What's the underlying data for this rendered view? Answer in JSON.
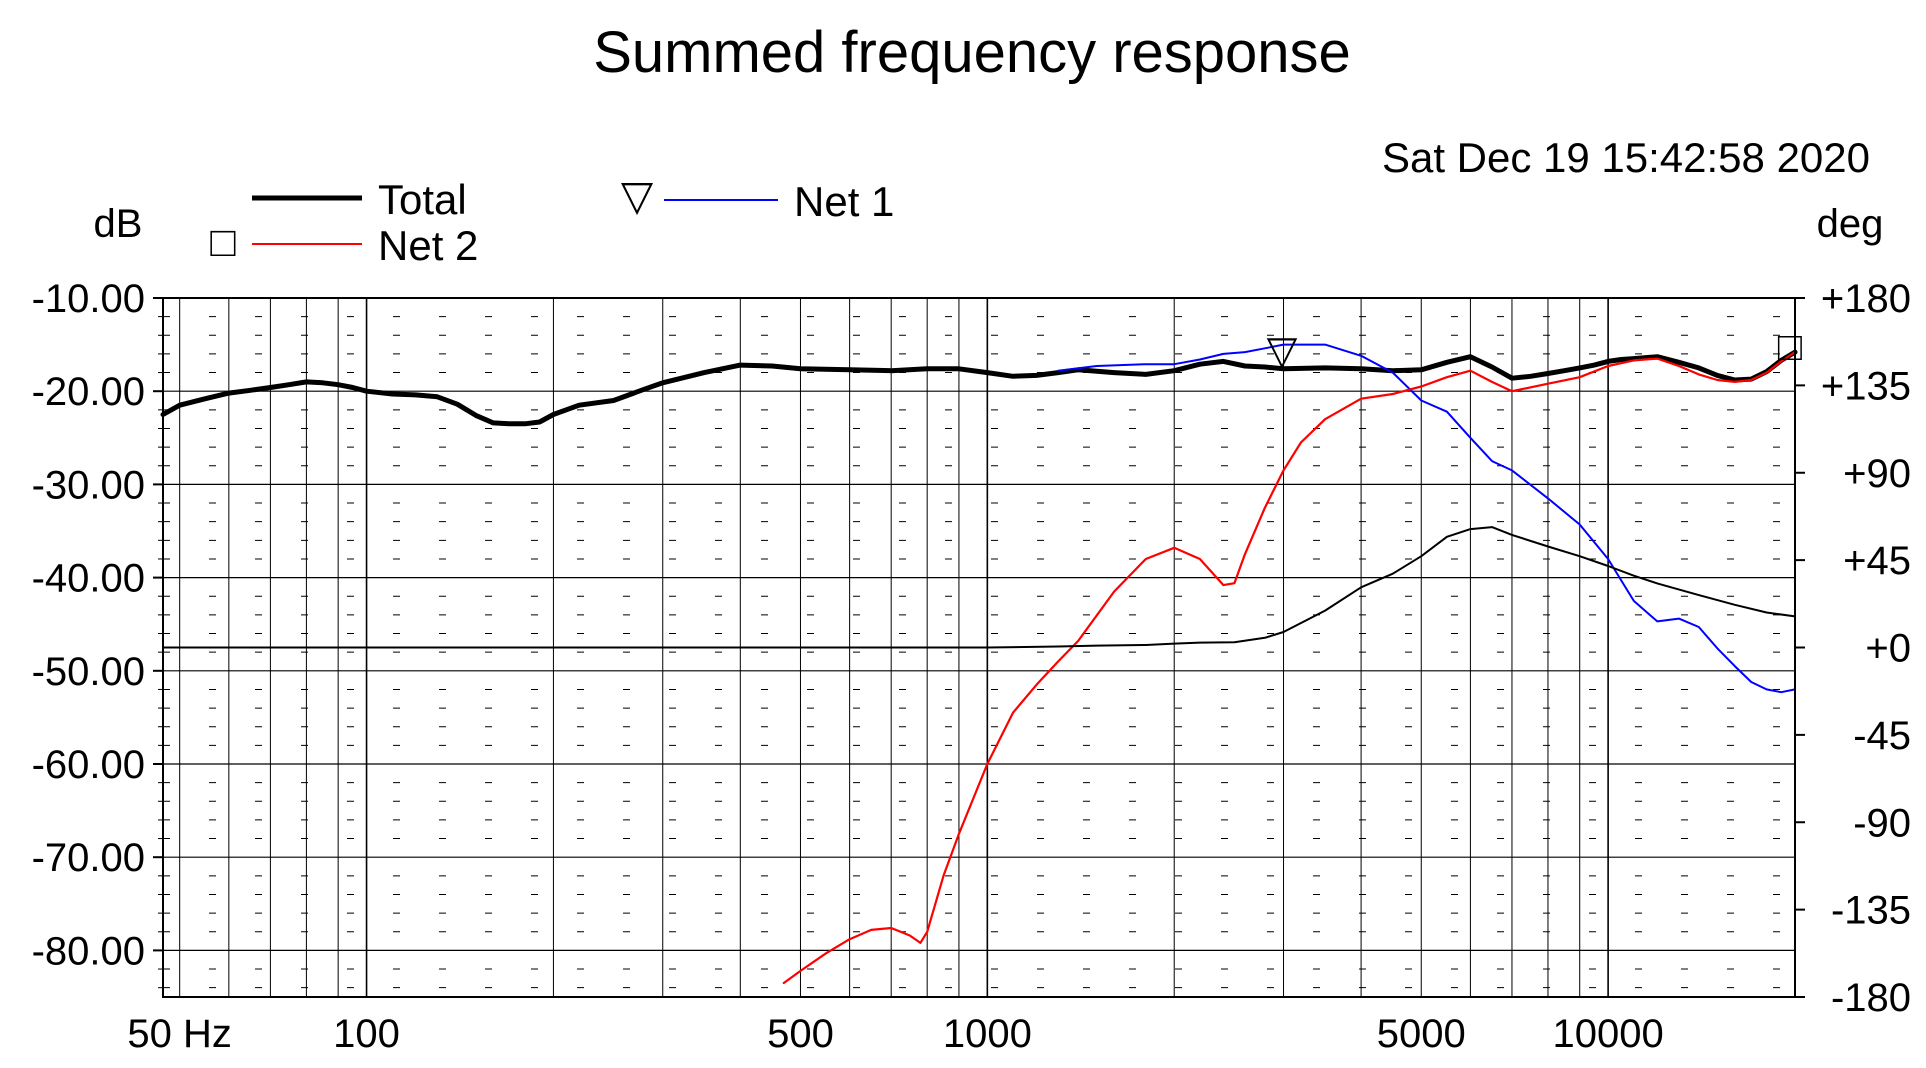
{
  "chart_data": {
    "type": "line",
    "title": "Summed frequency response",
    "timestamp": "Sat Dec 19 15:42:58 2020",
    "left_axis_unit": "dB",
    "right_axis_unit": "deg",
    "x_scale": "log",
    "x_range_hz": [
      47,
      20000
    ],
    "y_left_range_db": [
      -85,
      -10
    ],
    "y_right_range_deg": [
      -180,
      180
    ],
    "x_ticks": [
      {
        "value": 50,
        "label": "50 Hz"
      },
      {
        "value": 100,
        "label": "100"
      },
      {
        "value": 500,
        "label": "500"
      },
      {
        "value": 1000,
        "label": "1000"
      },
      {
        "value": 5000,
        "label": "5000"
      },
      {
        "value": 10000,
        "label": "10000"
      }
    ],
    "y_left_ticks": [
      {
        "value": -10,
        "label": "-10.00"
      },
      {
        "value": -20,
        "label": "-20.00"
      },
      {
        "value": -30,
        "label": "-30.00"
      },
      {
        "value": -40,
        "label": "-40.00"
      },
      {
        "value": -50,
        "label": "-50.00"
      },
      {
        "value": -60,
        "label": "-60.00"
      },
      {
        "value": -70,
        "label": "-70.00"
      },
      {
        "value": -80,
        "label": "-80.00"
      }
    ],
    "y_right_ticks": [
      {
        "value": 180,
        "label": "+180"
      },
      {
        "value": 135,
        "label": "+135"
      },
      {
        "value": 90,
        "label": "+90"
      },
      {
        "value": 45,
        "label": "+45"
      },
      {
        "value": 0,
        "label": "+0"
      },
      {
        "value": -45,
        "label": "-45"
      },
      {
        "value": -90,
        "label": "-90"
      },
      {
        "value": -135,
        "label": "-135"
      },
      {
        "value": -180,
        "label": "-180"
      }
    ],
    "legend": [
      {
        "name": "Total",
        "color": "#000000",
        "marker": ""
      },
      {
        "name": "Net 2",
        "color": "#ff0000",
        "marker": "□"
      },
      {
        "name": "Net 1",
        "color": "#0000ff",
        "marker": "▽"
      }
    ],
    "series": [
      {
        "name": "Total",
        "axis": "left",
        "color": "#000000",
        "points": [
          [
            47,
            -22.5
          ],
          [
            50,
            -21.5
          ],
          [
            55,
            -20.8
          ],
          [
            60,
            -20.2
          ],
          [
            65,
            -19.9
          ],
          [
            70,
            -19.6
          ],
          [
            75,
            -19.3
          ],
          [
            80,
            -19.0
          ],
          [
            85,
            -19.1
          ],
          [
            90,
            -19.3
          ],
          [
            95,
            -19.6
          ],
          [
            100,
            -20.0
          ],
          [
            110,
            -20.3
          ],
          [
            120,
            -20.4
          ],
          [
            130,
            -20.6
          ],
          [
            140,
            -21.4
          ],
          [
            150,
            -22.6
          ],
          [
            160,
            -23.4
          ],
          [
            170,
            -23.5
          ],
          [
            180,
            -23.5
          ],
          [
            190,
            -23.3
          ],
          [
            200,
            -22.5
          ],
          [
            220,
            -21.5
          ],
          [
            250,
            -21.0
          ],
          [
            280,
            -19.8
          ],
          [
            300,
            -19.1
          ],
          [
            350,
            -18.0
          ],
          [
            400,
            -17.2
          ],
          [
            450,
            -17.3
          ],
          [
            500,
            -17.6
          ],
          [
            600,
            -17.7
          ],
          [
            700,
            -17.8
          ],
          [
            800,
            -17.6
          ],
          [
            900,
            -17.6
          ],
          [
            1000,
            -18.0
          ],
          [
            1100,
            -18.4
          ],
          [
            1200,
            -18.3
          ],
          [
            1300,
            -18.0
          ],
          [
            1400,
            -17.7
          ],
          [
            1600,
            -18.0
          ],
          [
            1800,
            -18.2
          ],
          [
            2000,
            -17.8
          ],
          [
            2200,
            -17.1
          ],
          [
            2400,
            -16.8
          ],
          [
            2600,
            -17.3
          ],
          [
            2800,
            -17.4
          ],
          [
            3000,
            -17.6
          ],
          [
            3500,
            -17.5
          ],
          [
            4000,
            -17.6
          ],
          [
            4500,
            -17.8
          ],
          [
            5000,
            -17.7
          ],
          [
            5500,
            -16.9
          ],
          [
            6000,
            -16.3
          ],
          [
            6500,
            -17.4
          ],
          [
            7000,
            -18.6
          ],
          [
            7500,
            -18.4
          ],
          [
            8000,
            -18.1
          ],
          [
            8500,
            -17.8
          ],
          [
            9000,
            -17.5
          ],
          [
            9500,
            -17.2
          ],
          [
            10000,
            -16.8
          ],
          [
            10500,
            -16.6
          ],
          [
            11000,
            -16.5
          ],
          [
            12000,
            -16.3
          ],
          [
            13000,
            -16.9
          ],
          [
            14000,
            -17.5
          ],
          [
            15000,
            -18.3
          ],
          [
            16000,
            -18.8
          ],
          [
            17000,
            -18.7
          ],
          [
            18000,
            -17.9
          ],
          [
            19000,
            -16.7
          ],
          [
            20000,
            -15.8
          ]
        ]
      },
      {
        "name": "Net 1",
        "axis": "left",
        "color": "#0000ff",
        "points": [
          [
            1300,
            -17.8
          ],
          [
            1500,
            -17.3
          ],
          [
            1800,
            -17.1
          ],
          [
            2000,
            -17.1
          ],
          [
            2200,
            -16.6
          ],
          [
            2400,
            -16.0
          ],
          [
            2600,
            -15.8
          ],
          [
            2800,
            -15.4
          ],
          [
            3000,
            -15.0
          ],
          [
            3500,
            -15.0
          ],
          [
            4000,
            -16.2
          ],
          [
            4500,
            -18.0
          ],
          [
            5000,
            -21.0
          ],
          [
            5500,
            -22.2
          ],
          [
            6000,
            -25.0
          ],
          [
            6500,
            -27.5
          ],
          [
            7000,
            -28.5
          ],
          [
            8000,
            -31.5
          ],
          [
            9000,
            -34.3
          ],
          [
            10000,
            -38.0
          ],
          [
            11000,
            -42.5
          ],
          [
            12000,
            -44.7
          ],
          [
            13000,
            -44.4
          ],
          [
            14000,
            -45.3
          ],
          [
            15000,
            -47.6
          ],
          [
            16000,
            -49.5
          ],
          [
            17000,
            -51.2
          ],
          [
            18000,
            -52.0
          ],
          [
            19000,
            -52.3
          ],
          [
            20000,
            -52.0
          ]
        ]
      },
      {
        "name": "Net 2",
        "axis": "left",
        "color": "#ff0000",
        "points": [
          [
            470,
            -83.5
          ],
          [
            500,
            -82.2
          ],
          [
            550,
            -80.3
          ],
          [
            600,
            -78.8
          ],
          [
            650,
            -77.8
          ],
          [
            700,
            -77.6
          ],
          [
            750,
            -78.4
          ],
          [
            780,
            -79.2
          ],
          [
            800,
            -78.0
          ],
          [
            850,
            -72.0
          ],
          [
            900,
            -67.5
          ],
          [
            1000,
            -60.0
          ],
          [
            1100,
            -54.5
          ],
          [
            1200,
            -51.5
          ],
          [
            1300,
            -49.0
          ],
          [
            1400,
            -46.8
          ],
          [
            1600,
            -41.5
          ],
          [
            1800,
            -38.0
          ],
          [
            2000,
            -36.8
          ],
          [
            2200,
            -38.0
          ],
          [
            2400,
            -40.8
          ],
          [
            2500,
            -40.6
          ],
          [
            2600,
            -37.5
          ],
          [
            2800,
            -32.5
          ],
          [
            3000,
            -28.5
          ],
          [
            3200,
            -25.5
          ],
          [
            3500,
            -23.0
          ],
          [
            4000,
            -20.8
          ],
          [
            4500,
            -20.3
          ],
          [
            5000,
            -19.5
          ],
          [
            5500,
            -18.5
          ],
          [
            6000,
            -17.8
          ],
          [
            6500,
            -19.0
          ],
          [
            7000,
            -20.0
          ],
          [
            8000,
            -19.2
          ],
          [
            9000,
            -18.5
          ],
          [
            10000,
            -17.3
          ],
          [
            11000,
            -16.7
          ],
          [
            12000,
            -16.5
          ],
          [
            13000,
            -17.3
          ],
          [
            14000,
            -18.2
          ],
          [
            15000,
            -18.8
          ],
          [
            16000,
            -19.0
          ],
          [
            17000,
            -18.8
          ],
          [
            18000,
            -18.0
          ],
          [
            19000,
            -16.8
          ],
          [
            20000,
            -15.8
          ]
        ]
      },
      {
        "name": "Phase",
        "axis": "right",
        "color": "#000000",
        "points": [
          [
            47,
            0
          ],
          [
            500,
            0
          ],
          [
            1000,
            0
          ],
          [
            1300,
            0.5
          ],
          [
            1500,
            1
          ],
          [
            1800,
            1.3
          ],
          [
            2000,
            2
          ],
          [
            2200,
            2.5
          ],
          [
            2500,
            2.7
          ],
          [
            2800,
            5
          ],
          [
            3000,
            8
          ],
          [
            3500,
            19
          ],
          [
            4000,
            31
          ],
          [
            4500,
            38
          ],
          [
            5000,
            47
          ],
          [
            5500,
            57
          ],
          [
            6000,
            61
          ],
          [
            6500,
            62
          ],
          [
            7000,
            58
          ],
          [
            8000,
            52
          ],
          [
            9000,
            47
          ],
          [
            10000,
            42
          ],
          [
            11000,
            37
          ],
          [
            12000,
            33
          ],
          [
            14000,
            27
          ],
          [
            16000,
            22
          ],
          [
            18000,
            18
          ],
          [
            20000,
            16
          ]
        ]
      }
    ],
    "grid": true
  }
}
